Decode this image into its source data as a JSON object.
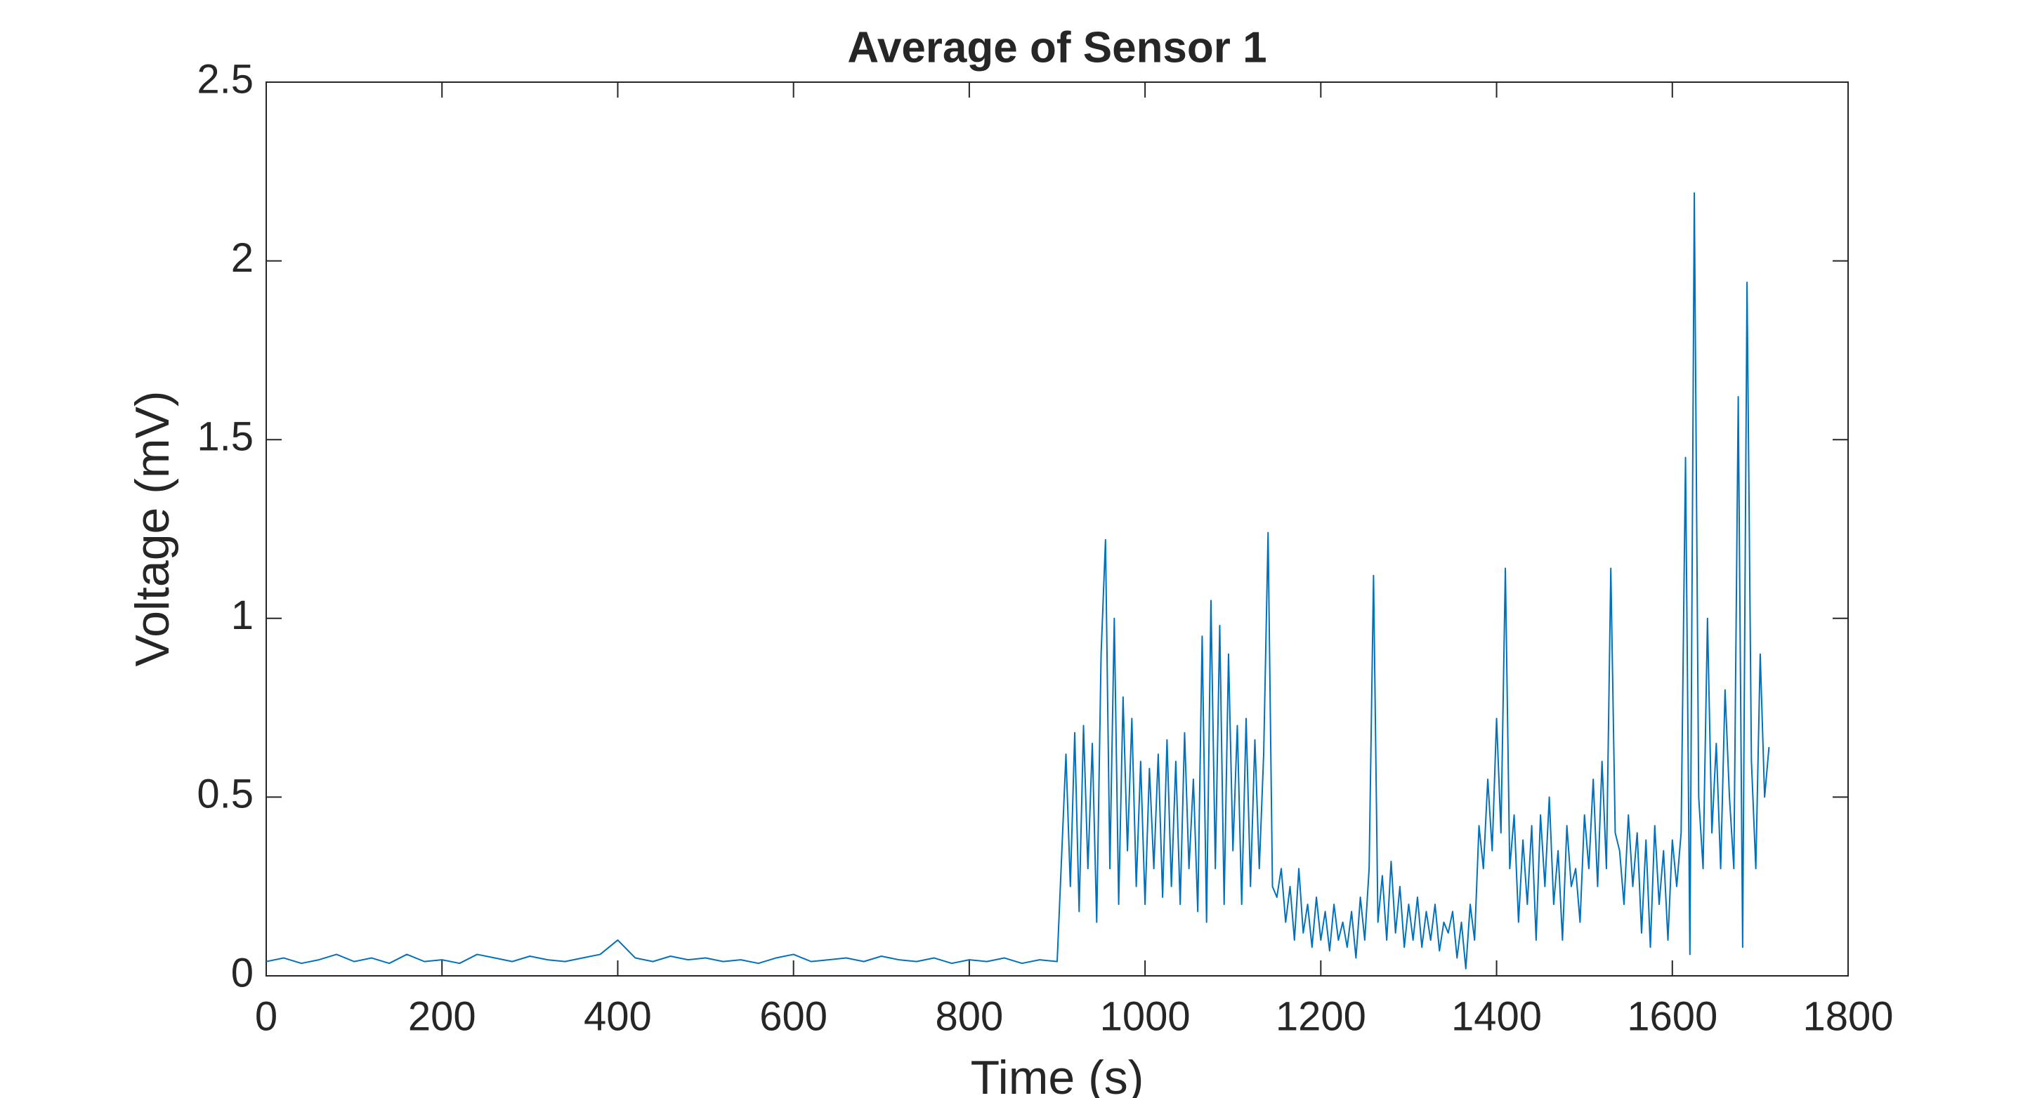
{
  "chart_data": {
    "type": "line",
    "title": "Average of Sensor 1",
    "x_label": "Time (s)",
    "y_label": "Voltage (mV)",
    "x": [
      0,
      20,
      40,
      60,
      80,
      100,
      120,
      140,
      160,
      180,
      200,
      220,
      240,
      260,
      280,
      300,
      320,
      340,
      360,
      380,
      400,
      420,
      440,
      460,
      480,
      500,
      520,
      540,
      560,
      580,
      600,
      620,
      640,
      660,
      680,
      700,
      720,
      740,
      760,
      780,
      800,
      820,
      840,
      860,
      880,
      900,
      910,
      915,
      920,
      925,
      930,
      935,
      940,
      945,
      950,
      955,
      960,
      965,
      970,
      975,
      980,
      985,
      990,
      995,
      1000,
      1005,
      1010,
      1015,
      1020,
      1025,
      1030,
      1035,
      1040,
      1045,
      1050,
      1055,
      1060,
      1065,
      1070,
      1075,
      1080,
      1085,
      1090,
      1095,
      1100,
      1105,
      1110,
      1115,
      1120,
      1125,
      1130,
      1135,
      1140,
      1145,
      1150,
      1155,
      1160,
      1165,
      1170,
      1175,
      1180,
      1185,
      1190,
      1195,
      1200,
      1205,
      1210,
      1215,
      1220,
      1225,
      1230,
      1235,
      1240,
      1245,
      1250,
      1255,
      1260,
      1265,
      1270,
      1275,
      1280,
      1285,
      1290,
      1295,
      1300,
      1305,
      1310,
      1315,
      1320,
      1325,
      1330,
      1335,
      1340,
      1345,
      1350,
      1355,
      1360,
      1365,
      1370,
      1375,
      1380,
      1385,
      1390,
      1395,
      1400,
      1405,
      1410,
      1415,
      1420,
      1425,
      1430,
      1435,
      1440,
      1445,
      1450,
      1455,
      1460,
      1465,
      1470,
      1475,
      1480,
      1485,
      1490,
      1495,
      1500,
      1505,
      1510,
      1515,
      1520,
      1525,
      1530,
      1535,
      1540,
      1545,
      1550,
      1555,
      1560,
      1565,
      1570,
      1575,
      1580,
      1585,
      1590,
      1595,
      1600,
      1605,
      1610,
      1615,
      1620,
      1625,
      1630,
      1635,
      1640,
      1645,
      1650,
      1655,
      1660,
      1665,
      1670,
      1675,
      1680,
      1685,
      1690,
      1695,
      1700,
      1705,
      1710
    ],
    "series": [
      {
        "name": "Sensor 1",
        "color": "#0072bd",
        "values": [
          0.04,
          0.05,
          0.035,
          0.045,
          0.06,
          0.04,
          0.05,
          0.035,
          0.06,
          0.04,
          0.045,
          0.035,
          0.06,
          0.05,
          0.04,
          0.055,
          0.045,
          0.04,
          0.05,
          0.06,
          0.1,
          0.05,
          0.04,
          0.055,
          0.045,
          0.05,
          0.04,
          0.045,
          0.035,
          0.05,
          0.06,
          0.04,
          0.045,
          0.05,
          0.04,
          0.055,
          0.045,
          0.04,
          0.05,
          0.035,
          0.045,
          0.04,
          0.05,
          0.035,
          0.045,
          0.04,
          0.62,
          0.25,
          0.68,
          0.18,
          0.7,
          0.3,
          0.65,
          0.15,
          0.9,
          1.22,
          0.3,
          1.0,
          0.2,
          0.78,
          0.35,
          0.72,
          0.25,
          0.6,
          0.2,
          0.58,
          0.3,
          0.62,
          0.22,
          0.66,
          0.25,
          0.6,
          0.2,
          0.68,
          0.3,
          0.55,
          0.18,
          0.95,
          0.15,
          1.05,
          0.3,
          0.98,
          0.2,
          0.9,
          0.35,
          0.7,
          0.2,
          0.72,
          0.25,
          0.66,
          0.3,
          0.62,
          1.24,
          0.25,
          0.22,
          0.3,
          0.15,
          0.25,
          0.1,
          0.3,
          0.12,
          0.2,
          0.08,
          0.22,
          0.1,
          0.18,
          0.07,
          0.2,
          0.1,
          0.15,
          0.08,
          0.18,
          0.05,
          0.22,
          0.1,
          0.3,
          1.12,
          0.15,
          0.28,
          0.1,
          0.32,
          0.12,
          0.25,
          0.08,
          0.2,
          0.1,
          0.22,
          0.08,
          0.18,
          0.1,
          0.2,
          0.07,
          0.15,
          0.12,
          0.18,
          0.05,
          0.15,
          0.02,
          0.2,
          0.1,
          0.42,
          0.3,
          0.55,
          0.35,
          0.72,
          0.4,
          1.14,
          0.3,
          0.45,
          0.15,
          0.38,
          0.2,
          0.42,
          0.1,
          0.45,
          0.25,
          0.5,
          0.2,
          0.35,
          0.1,
          0.42,
          0.25,
          0.3,
          0.15,
          0.45,
          0.3,
          0.55,
          0.25,
          0.6,
          0.3,
          1.14,
          0.4,
          0.35,
          0.2,
          0.45,
          0.25,
          0.4,
          0.12,
          0.38,
          0.08,
          0.42,
          0.2,
          0.35,
          0.1,
          0.38,
          0.25,
          0.4,
          1.45,
          0.06,
          2.19,
          0.5,
          0.3,
          1.0,
          0.4,
          0.65,
          0.3,
          0.8,
          0.5,
          0.3,
          1.62,
          0.08,
          1.94,
          0.6,
          0.3,
          0.9,
          0.5,
          0.64
        ]
      }
    ],
    "xlim": [
      0,
      1800
    ],
    "xticks": [
      0,
      200,
      400,
      600,
      800,
      1000,
      1200,
      1400,
      1600,
      1800
    ],
    "ylim": [
      0,
      2.5
    ],
    "yticks": [
      0,
      0.5,
      1,
      1.5,
      2,
      2.5
    ],
    "grid": false
  }
}
